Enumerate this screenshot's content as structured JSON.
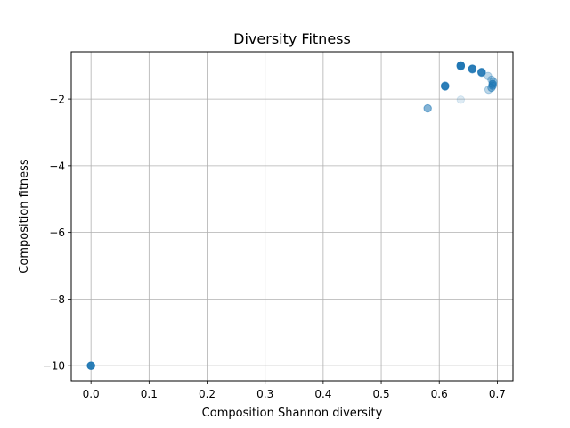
{
  "chart_data": {
    "type": "scatter",
    "title": "Diversity Fitness",
    "xlabel": "Composition Shannon diversity",
    "ylabel": "Composition fitness",
    "xlim": [
      -0.034,
      0.727
    ],
    "ylim": [
      -10.45,
      -0.58
    ],
    "grid": true,
    "legend": "none",
    "x_ticks": [
      {
        "value": 0.0,
        "label": "0.0"
      },
      {
        "value": 0.1,
        "label": "0.1"
      },
      {
        "value": 0.2,
        "label": "0.2"
      },
      {
        "value": 0.3,
        "label": "0.3"
      },
      {
        "value": 0.4,
        "label": "0.4"
      },
      {
        "value": 0.5,
        "label": "0.5"
      },
      {
        "value": 0.6,
        "label": "0.6"
      },
      {
        "value": 0.7,
        "label": "0.7"
      }
    ],
    "y_ticks": [
      {
        "value": -2,
        "label": "−2"
      },
      {
        "value": -4,
        "label": "−4"
      },
      {
        "value": -6,
        "label": "−6"
      },
      {
        "value": -8,
        "label": "−8"
      },
      {
        "value": -10,
        "label": "−10"
      }
    ],
    "series": [
      {
        "color": "#1f77b4",
        "points": [
          {
            "x": 0.0,
            "y": -10.0,
            "alpha": 0.9
          },
          {
            "x": 0.0,
            "y": -10.0,
            "alpha": 0.5
          },
          {
            "x": 0.58,
            "y": -2.28,
            "alpha": 0.55
          },
          {
            "x": 0.61,
            "y": -1.62,
            "alpha": 0.85
          },
          {
            "x": 0.61,
            "y": -1.6,
            "alpha": 0.6
          },
          {
            "x": 0.637,
            "y": -2.02,
            "alpha": 0.15
          },
          {
            "x": 0.637,
            "y": -1.0,
            "alpha": 0.9
          },
          {
            "x": 0.637,
            "y": -0.99,
            "alpha": 0.7
          },
          {
            "x": 0.637,
            "y": -1.02,
            "alpha": 0.6
          },
          {
            "x": 0.657,
            "y": -1.09,
            "alpha": 0.85
          },
          {
            "x": 0.657,
            "y": -1.11,
            "alpha": 0.6
          },
          {
            "x": 0.673,
            "y": -1.19,
            "alpha": 0.8
          },
          {
            "x": 0.673,
            "y": -1.21,
            "alpha": 0.6
          },
          {
            "x": 0.684,
            "y": -1.31,
            "alpha": 0.3
          },
          {
            "x": 0.685,
            "y": -1.72,
            "alpha": 0.3
          },
          {
            "x": 0.69,
            "y": -1.66,
            "alpha": 0.5
          },
          {
            "x": 0.69,
            "y": -1.42,
            "alpha": 0.35
          },
          {
            "x": 0.692,
            "y": -1.55,
            "alpha": 0.7
          },
          {
            "x": 0.692,
            "y": -1.6,
            "alpha": 0.55
          },
          {
            "x": 0.693,
            "y": -1.48,
            "alpha": 0.4
          }
        ]
      }
    ]
  }
}
